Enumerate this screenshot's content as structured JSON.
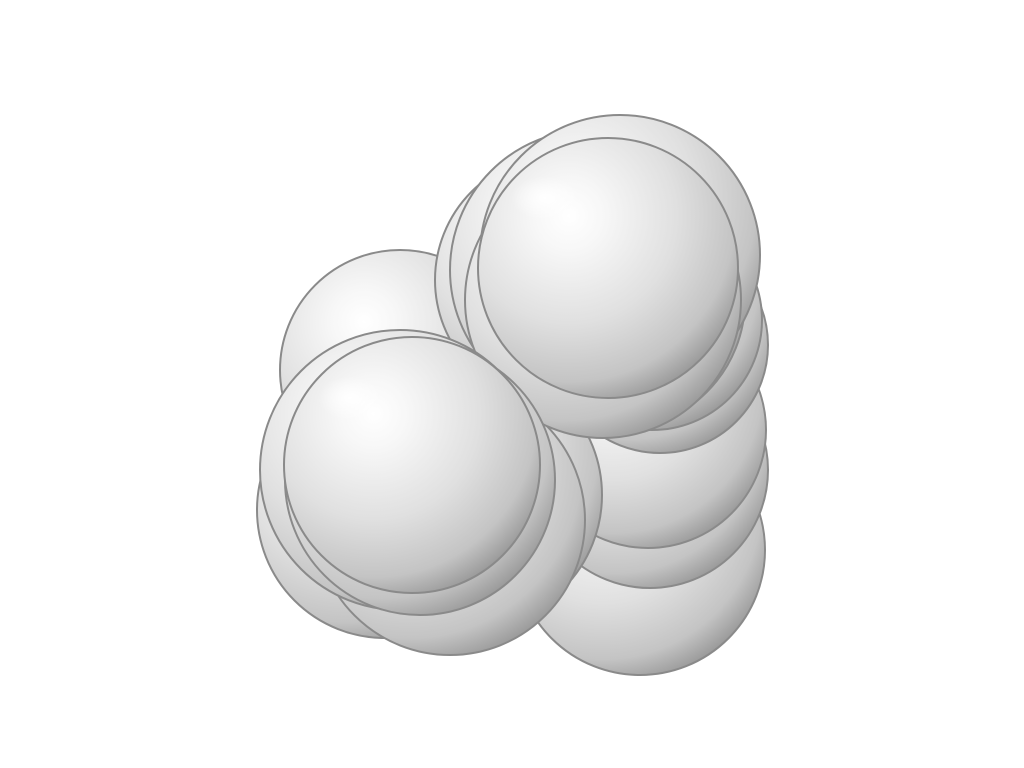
{
  "scene": {
    "subject": "space-filling-molecule-render",
    "background_color": "#ffffff",
    "atom_color": "#d9d9d9",
    "atom_highlight_color": "#ffffff",
    "atom_shadow_color": "#8a8a8a",
    "atom_count": 19
  }
}
